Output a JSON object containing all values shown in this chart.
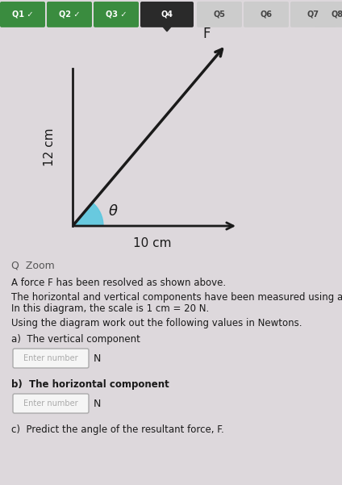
{
  "bg_color": "#ddd8dc",
  "nav_tabs": [
    "Q1",
    "Q2",
    "Q3",
    "Q4",
    "Q5",
    "Q6",
    "Q7",
    "Q8"
  ],
  "nav_checked": [
    true,
    true,
    true,
    false,
    false,
    false,
    false,
    false
  ],
  "nav_active": 3,
  "tab_bg_colors": [
    "#3a8c3f",
    "#3a8c3f",
    "#3a8c3f",
    "#2a2a2a",
    "#cccccc",
    "#cccccc",
    "#cccccc",
    "#cccccc"
  ],
  "tab_text_colors": [
    "#ffffff",
    "#ffffff",
    "#ffffff",
    "#ffffff",
    "#444444",
    "#444444",
    "#444444",
    "#444444"
  ],
  "diagram_bg": "#ddd8dc",
  "vertical_label": "12 cm",
  "horizontal_label": "10 cm",
  "angle_label": "θ",
  "force_label": "F",
  "triangle_color": "#5bc8e0",
  "arrow_color": "#1a1a1a",
  "axis_color": "#1a1a1a",
  "zoom_text": "Q  Zoom",
  "text_lines": [
    "A force F has been resolved as shown above.",
    "The horizontal and vertical components have been measured using a ruler.",
    "In this diagram, the scale is 1 cm = 20 N.",
    "Using the diagram work out the following values in Newtons.",
    "a)  The vertical component",
    "b)  The horizontal component",
    "c)  Predict the angle of the resultant force, F."
  ],
  "input_box_labels": [
    "Enter number",
    "Enter number"
  ],
  "input_box_suffix_a": "N",
  "input_box_suffix_b": "N",
  "font_size_body": 8.5,
  "fig_width": 4.24,
  "fig_height": 6.01,
  "ox": 0.18,
  "oy": 0.12,
  "hl": 0.42,
  "vl": 0.72
}
